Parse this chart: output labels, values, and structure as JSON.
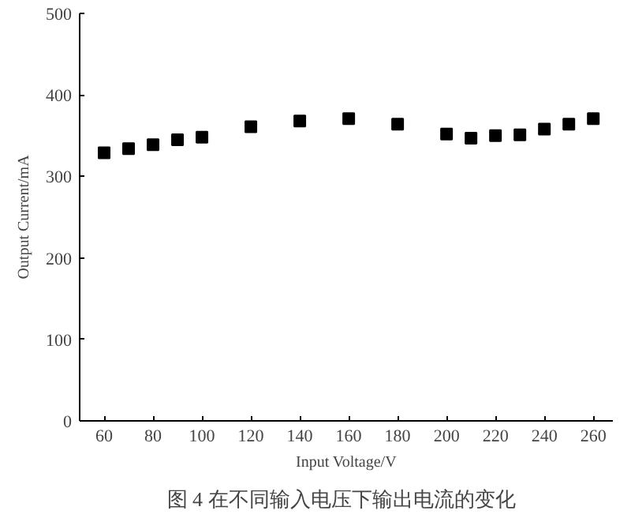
{
  "chart_data": {
    "type": "scatter",
    "xlabel": "Input Voltage/V",
    "ylabel": "Output Current/mA",
    "annotations": [
      "图 4   在不同输入电压下输出电流的变化"
    ],
    "x": [
      60,
      70,
      80,
      90,
      100,
      120,
      140,
      160,
      180,
      200,
      210,
      220,
      230,
      240,
      250,
      260
    ],
    "series": [
      {
        "color": "#000000",
        "values": [
          329,
          334,
          339,
          345,
          348,
          361,
          368,
          371,
          364,
          352,
          347,
          350,
          351,
          358,
          364,
          371
        ]
      }
    ],
    "marker": "square",
    "grid": false,
    "xlim": [
      50,
      268
    ],
    "xticks": [
      60,
      80,
      100,
      120,
      140,
      160,
      180,
      200,
      220,
      240,
      260
    ],
    "ylim": [
      0,
      500
    ],
    "yticks": [
      0,
      100,
      200,
      300,
      400,
      500
    ]
  }
}
